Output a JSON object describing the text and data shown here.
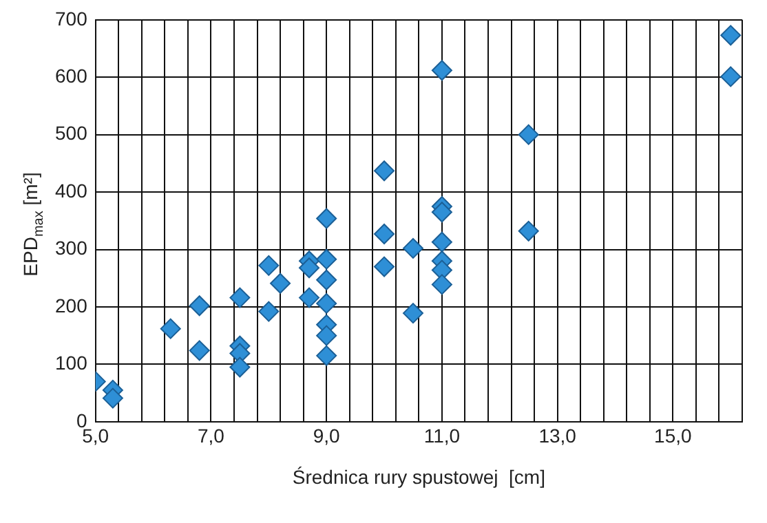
{
  "chart_data": {
    "type": "scatter",
    "xlabel": "Średnica rury spustowej  [cm]",
    "ylabel": "EPD$_{max}$  [m²]",
    "series": [
      {
        "color": "#2e8fd6",
        "x": [
          5.0,
          5.3,
          5.3,
          6.3,
          6.8,
          6.8,
          7.5,
          7.5,
          7.5,
          7.5,
          8.0,
          8.0,
          8.2,
          8.7,
          8.7,
          8.7,
          9.0,
          9.0,
          9.0,
          9.0,
          9.0,
          9.0,
          9.0,
          10.0,
          10.0,
          10.0,
          10.5,
          10.5,
          11.0,
          11.0,
          11.0,
          11.0,
          11.0,
          11.0,
          11.0,
          12.5,
          12.5,
          16.0,
          16.0
        ],
        "values": [
          70,
          55,
          41,
          162,
          202,
          124,
          216,
          132,
          119,
          95,
          272,
          192,
          241,
          280,
          268,
          216,
          354,
          283,
          247,
          206,
          169,
          150,
          115,
          437,
          327,
          270,
          302,
          189,
          612,
          375,
          365,
          313,
          280,
          264,
          239,
          500,
          332,
          673,
          601
        ]
      }
    ],
    "xlim": [
      5,
      16.2
    ],
    "xticks": [
      {
        "value": 5.0,
        "label": "5,0"
      },
      {
        "value": 5.4,
        "label": null
      },
      {
        "value": 5.8,
        "label": null
      },
      {
        "value": 6.2,
        "label": null
      },
      {
        "value": 6.6,
        "label": null
      },
      {
        "value": 7.0,
        "label": "7,0"
      },
      {
        "value": 7.4,
        "label": null
      },
      {
        "value": 7.8,
        "label": null
      },
      {
        "value": 8.2,
        "label": null
      },
      {
        "value": 8.6,
        "label": null
      },
      {
        "value": 9.0,
        "label": "9,0"
      },
      {
        "value": 9.4,
        "label": null
      },
      {
        "value": 9.8,
        "label": null
      },
      {
        "value": 10.2,
        "label": null
      },
      {
        "value": 10.6,
        "label": null
      },
      {
        "value": 11.0,
        "label": "11,0"
      },
      {
        "value": 11.4,
        "label": null
      },
      {
        "value": 11.8,
        "label": null
      },
      {
        "value": 12.2,
        "label": null
      },
      {
        "value": 12.6,
        "label": null
      },
      {
        "value": 13.0,
        "label": "13,0"
      },
      {
        "value": 13.4,
        "label": null
      },
      {
        "value": 13.8,
        "label": null
      },
      {
        "value": 14.2,
        "label": null
      },
      {
        "value": 14.6,
        "label": null
      },
      {
        "value": 15.0,
        "label": "15,0"
      },
      {
        "value": 15.4,
        "label": null
      },
      {
        "value": 15.8,
        "label": null
      },
      {
        "value": 16.2,
        "label": null
      }
    ],
    "ylim": [
      0,
      700
    ],
    "yticks": [
      0,
      100,
      200,
      300,
      400,
      500,
      600,
      700
    ],
    "grid": true,
    "legend": false,
    "marker": "diamond"
  }
}
